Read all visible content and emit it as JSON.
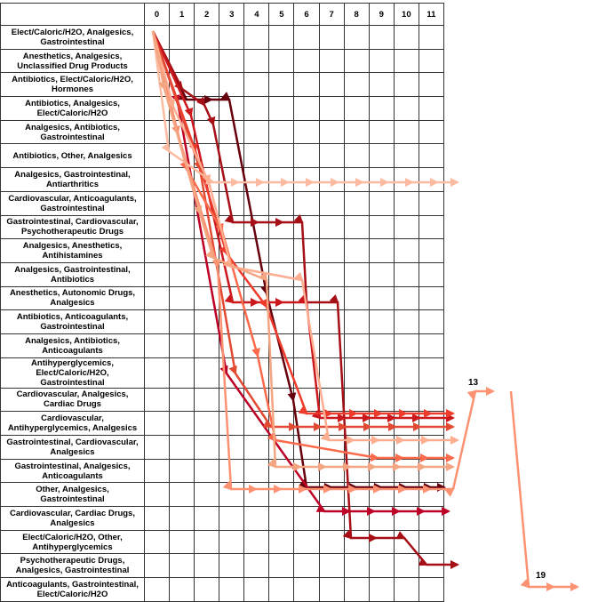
{
  "table": {
    "columns": [
      0,
      1,
      2,
      3,
      4,
      5,
      6,
      7,
      8,
      9,
      10,
      11
    ],
    "rows": [
      "Elect/Caloric/H2O, Analgesics, Gastrointestinal",
      "Anesthetics, Analgesics, Unclassified Drug Products",
      "Antibiotics, Elect/Caloric/H2O, Hormones",
      "Antibiotics, Analgesics, Elect/Caloric/H2O",
      "Analgesics, Antibiotics, Gastrointestinal",
      "Antibiotics, Other, Analgesics",
      "Analgesics, Gastrointestinal, Antiarthritics",
      "Cardiovascular, Anticoagulants, Gastrointestinal",
      "Gastrointestinal, Cardiovascular, Psychotherapeutic Drugs",
      "Analgesics, Anesthetics, Antihistamines",
      "Analgesics, Gastrointestinal, Antibiotics",
      "Anesthetics, Autonomic Drugs, Analgesics",
      "Antibiotics, Anticoagulants, Gastrointestinal",
      "Analgesics, Antibiotics, Anticoagulants",
      "Antihyperglycemics, Elect/Caloric/H2O, Gastrointestinal",
      "Cardiovascular, Analgesics, Cardiac Drugs",
      "Cardiovascular, Antihyperglycemics, Analgesics",
      "Gastrointestinal, Cardiovascular, Analgesics",
      "Gastrointestinal, Analgesics, Anticoagulants",
      "Other, Analgesics, Gastrointestinal",
      "Cardiovascular, Cardiac Drugs, Analgesics",
      "Elect/Caloric/H2O, Other, Antihyperglycemics",
      "Psychotherapeutic Drugs, Analgesics, Gastrointestinal",
      "Anticoagulants, Gastrointestinal, Elect/Caloric/H2O"
    ]
  },
  "overflow_labels": [
    "13",
    "19"
  ]
}
